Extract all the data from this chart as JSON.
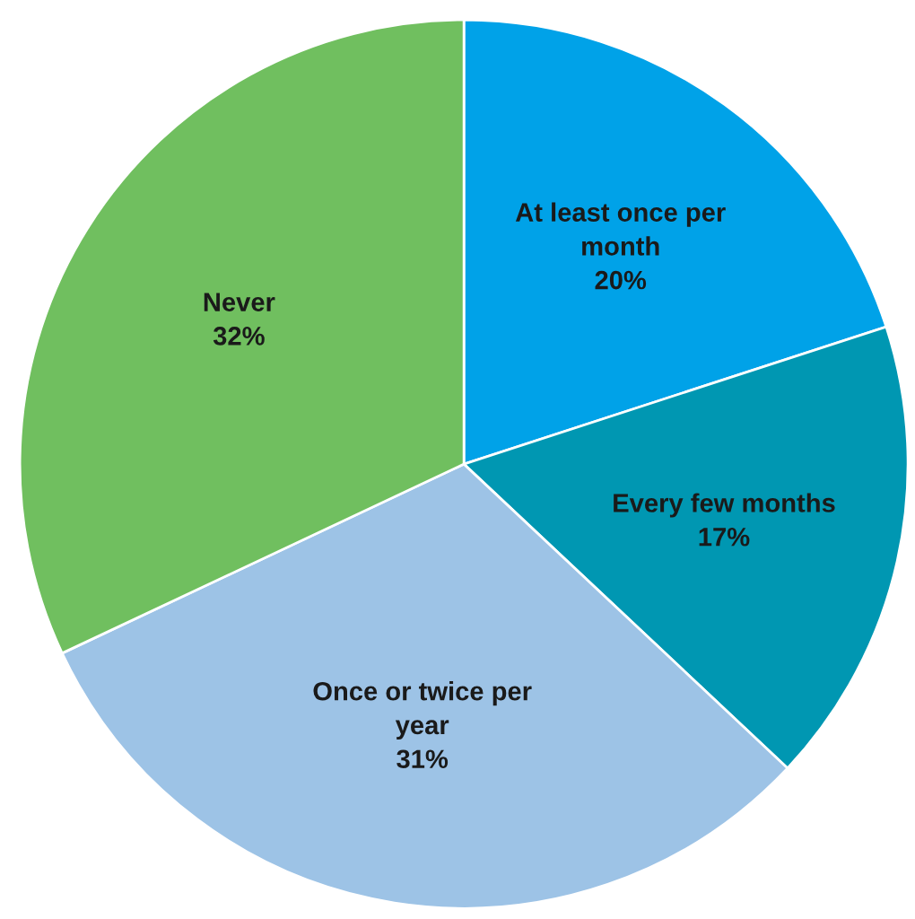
{
  "chart_data": {
    "type": "pie",
    "categories": [
      "At least once per\nmonth",
      "Every few months",
      "Once or twice per\nyear",
      "Never"
    ],
    "values": [
      20,
      17,
      31,
      32
    ],
    "value_labels": [
      "20%",
      "17%",
      "31%",
      "32%"
    ],
    "colors": [
      "#00a2e8",
      "#0097b2",
      "#9dc3e6",
      "#70bf5f"
    ],
    "legend": false
  }
}
